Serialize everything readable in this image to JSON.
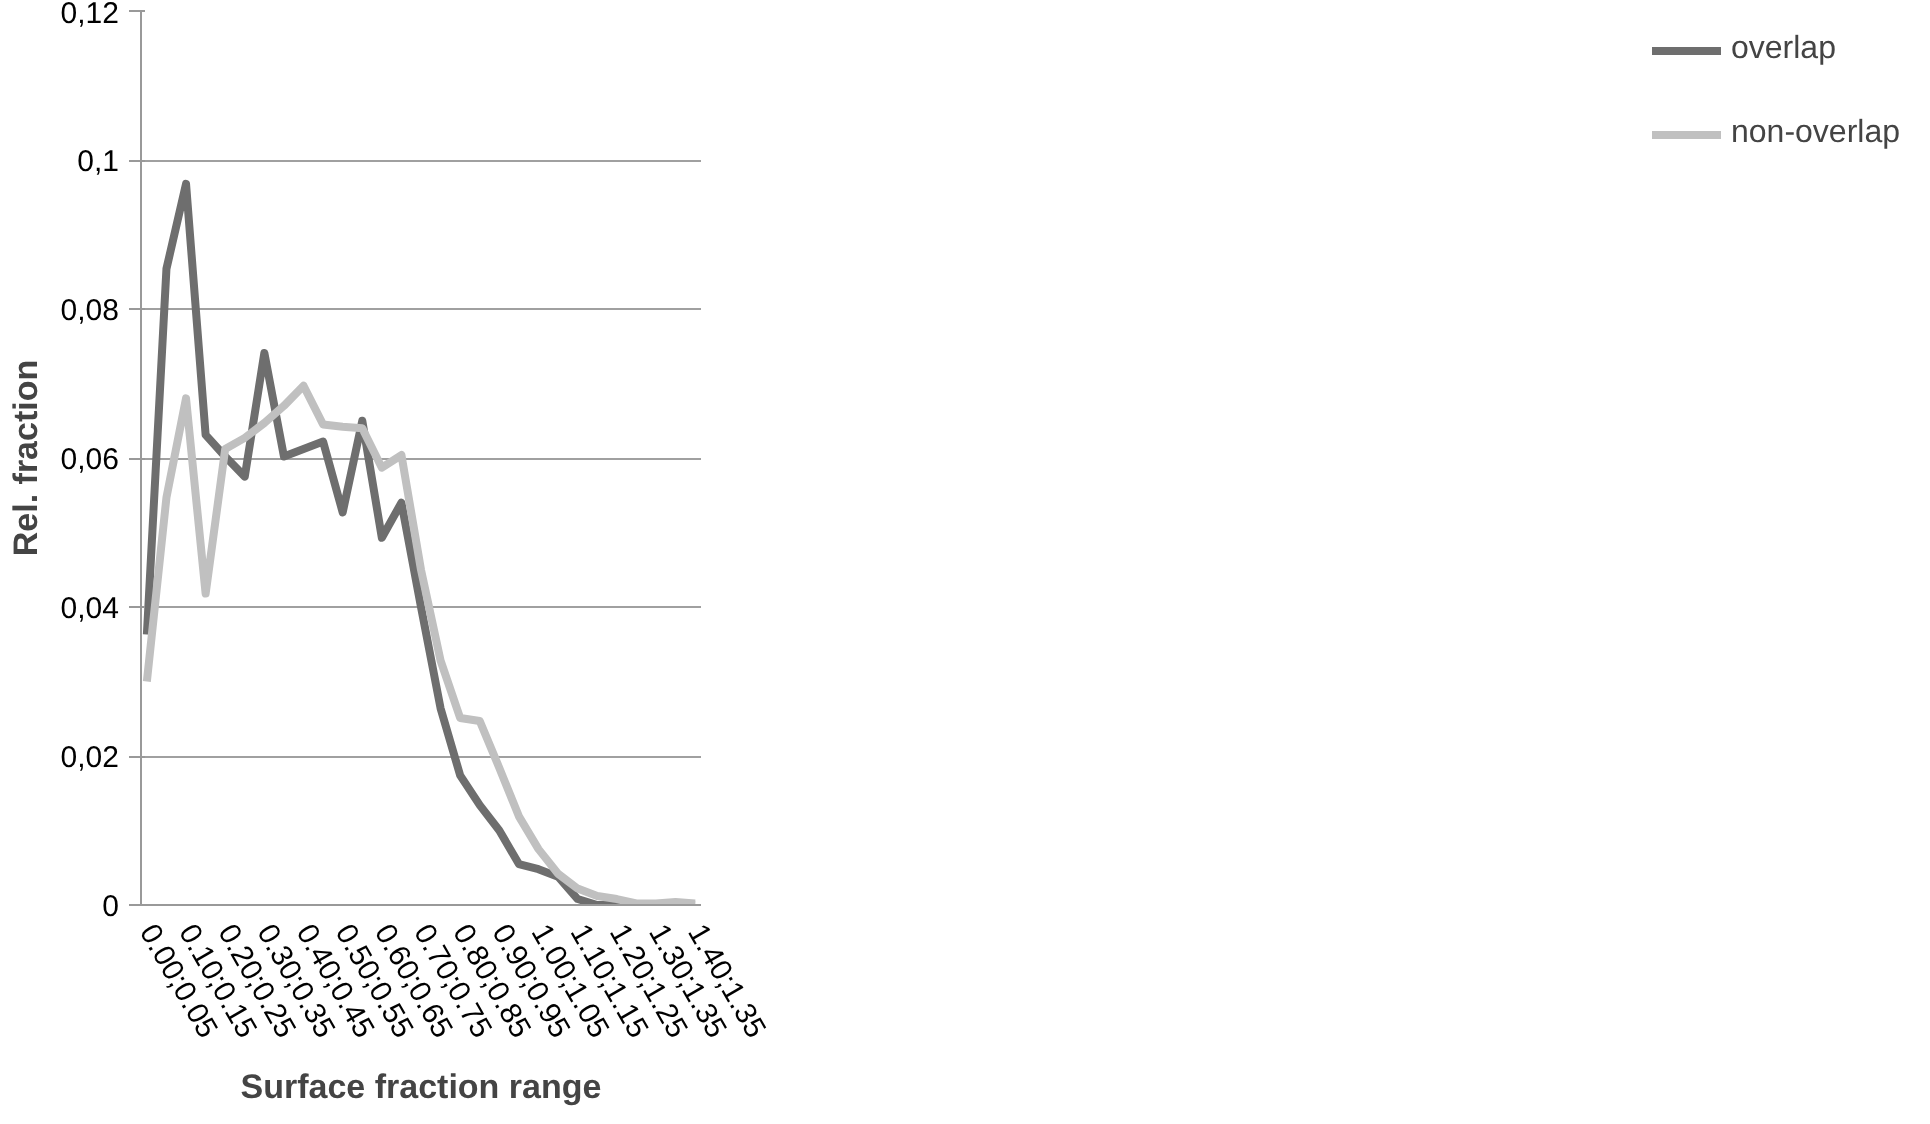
{
  "chart_data": {
    "type": "line",
    "xlabel": "Surface fraction range",
    "ylabel": "Rel. fraction",
    "categories": [
      "0.00;0.05",
      null,
      "0.10;0.15",
      null,
      "0.20;0.25",
      null,
      "0.30;0.35",
      null,
      "0.40;0.45",
      null,
      "0.50;0.55",
      null,
      "0.60;0.65",
      null,
      "0.70;0.75",
      null,
      "0.80;0.85",
      null,
      "0.90;0.95",
      null,
      "1.00;1.05",
      null,
      "1.10;1.15",
      null,
      "1.20;1.25",
      null,
      "1.30;1.35",
      null,
      "1.40;1.35"
    ],
    "series": [
      {
        "name": "overlap",
        "color": "#6e6e6e",
        "values": [
          0.0363,
          0.0854,
          0.0968,
          0.0631,
          0.0602,
          0.0575,
          0.0741,
          0.0602,
          0.0612,
          0.0622,
          0.0527,
          0.065,
          0.0493,
          0.054,
          0.04,
          0.0264,
          0.0174,
          0.0134,
          0.01,
          0.0055,
          0.0048,
          0.0038,
          0.0008,
          0,
          0,
          0,
          0,
          0,
          0
        ]
      },
      {
        "name": "non-overlap",
        "color": "#c0c0c0",
        "values": [
          0.03,
          0.0547,
          0.068,
          0.0418,
          0.0612,
          0.0627,
          0.0647,
          0.067,
          0.0697,
          0.0645,
          0.0642,
          0.064,
          0.0587,
          0.0604,
          0.045,
          0.0328,
          0.0251,
          0.0247,
          0.0184,
          0.0119,
          0.0075,
          0.0042,
          0.0022,
          0.0012,
          0.0008,
          0.0002,
          0.0002,
          0.0004,
          0.0002
        ]
      }
    ],
    "ylim": [
      0,
      0.12
    ],
    "yticks": [
      0,
      {
        "value": 0.02,
        "label": "0,02"
      },
      {
        "value": 0.04,
        "label": "0,04"
      },
      {
        "value": 0.06,
        "label": "0,06"
      },
      {
        "value": 0.08,
        "label": "0,08"
      },
      {
        "value": 0.1,
        "label": "0,1"
      },
      {
        "value": 0.12,
        "label": "0,12"
      }
    ],
    "grid": "y",
    "legend": "right",
    "marker": "none",
    "line_style": "solid"
  }
}
